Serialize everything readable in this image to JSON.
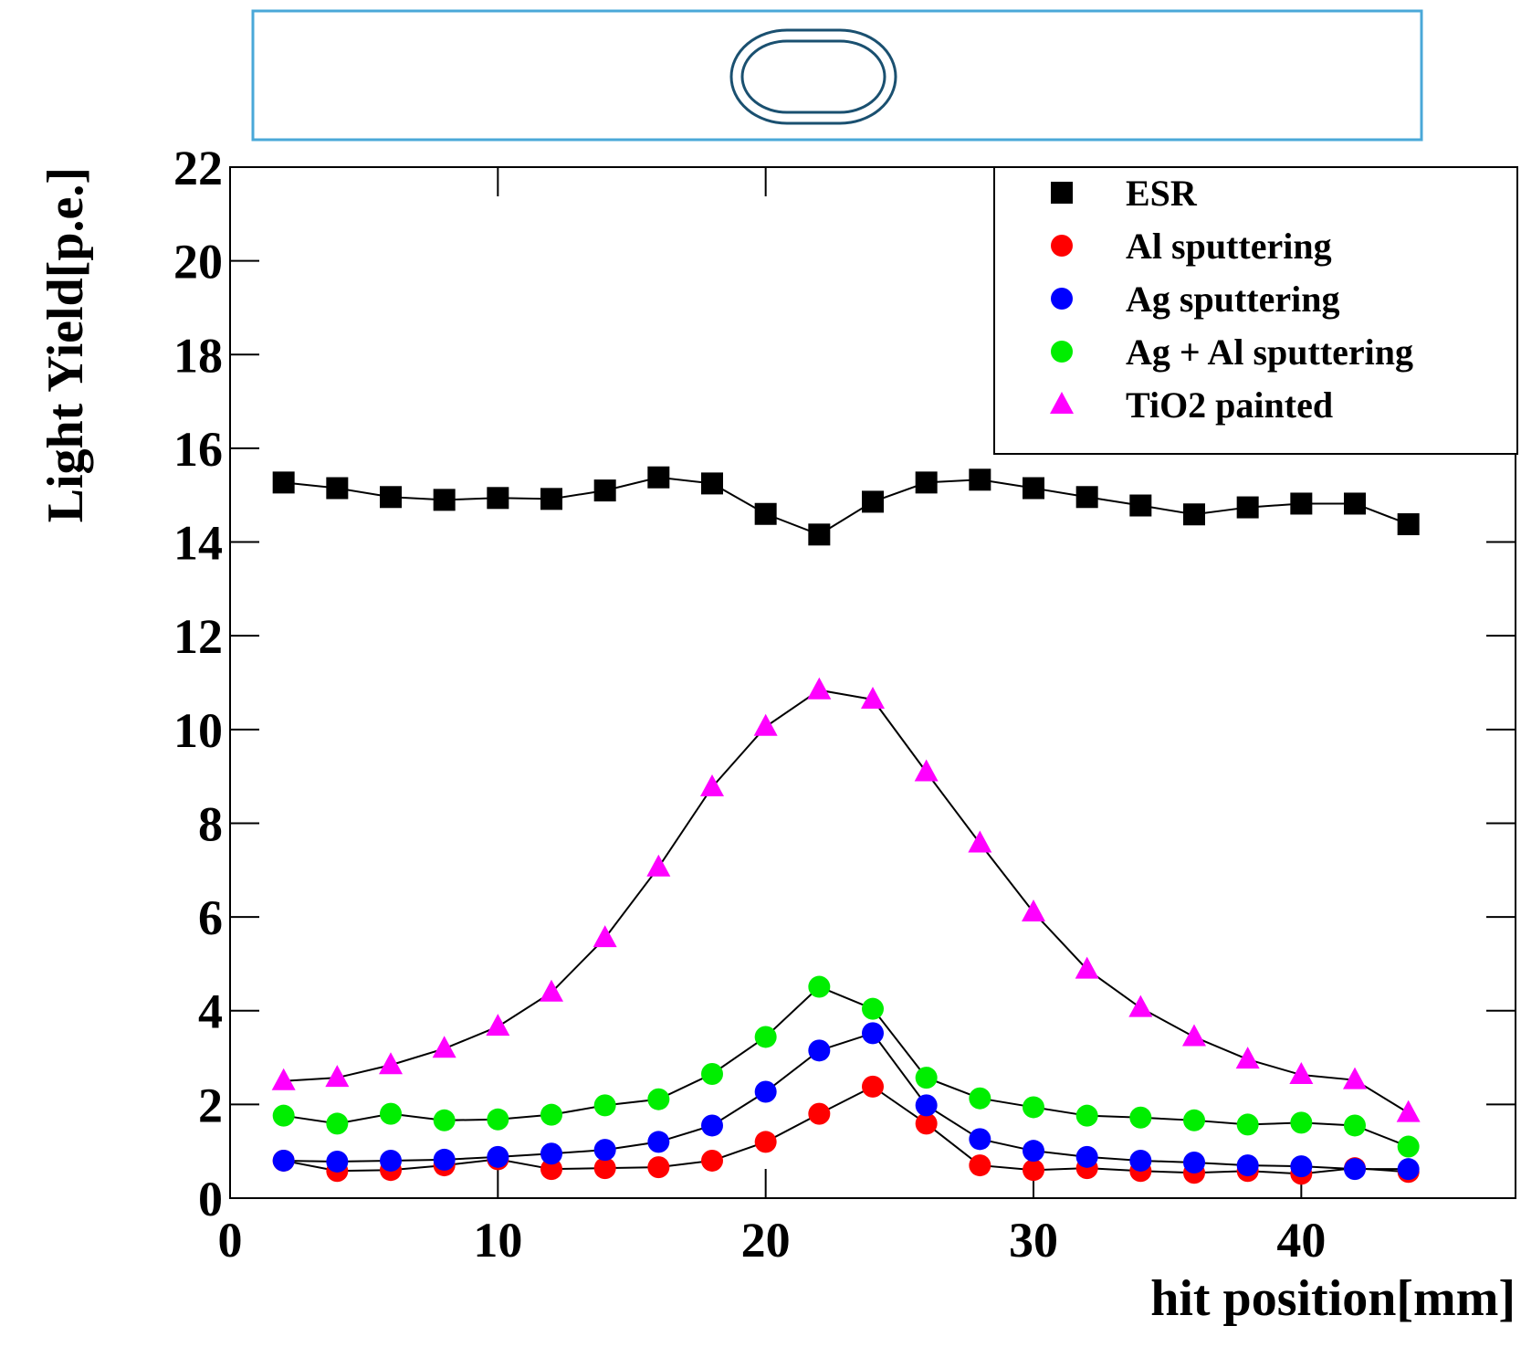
{
  "chart_data": {
    "type": "line",
    "x_label": "hit position[mm]",
    "y_label": "Light Yield[p.e.]",
    "x": [
      2,
      4,
      6,
      8,
      10,
      12,
      14,
      16,
      18,
      20,
      22,
      24,
      26,
      28,
      30,
      32,
      34,
      36,
      38,
      40,
      42,
      44
    ],
    "xlim": [
      0,
      48
    ],
    "xticks": [
      0,
      10,
      20,
      30,
      40
    ],
    "ylim": [
      0,
      22
    ],
    "yticks": [
      0,
      2,
      4,
      6,
      8,
      10,
      12,
      14,
      16,
      18,
      20,
      22
    ],
    "line_color": "#000000",
    "legend": "upper right",
    "series": [
      {
        "name": "ESR",
        "color": "#000000",
        "marker": "square",
        "values": [
          15.27,
          15.15,
          14.96,
          14.9,
          14.94,
          14.92,
          15.1,
          15.38,
          15.25,
          14.6,
          14.16,
          14.86,
          15.27,
          15.33,
          15.15,
          14.96,
          14.78,
          14.59,
          14.74,
          14.82,
          14.82,
          14.38
        ]
      },
      {
        "name": "Al sputtering",
        "color": "#ff0000",
        "marker": "circle",
        "values": [
          0.8,
          0.58,
          0.6,
          0.7,
          0.83,
          0.62,
          0.64,
          0.66,
          0.8,
          1.2,
          1.8,
          2.38,
          1.59,
          0.7,
          0.6,
          0.64,
          0.58,
          0.54,
          0.58,
          0.52,
          0.64,
          0.56
        ]
      },
      {
        "name": "Ag sputtering",
        "color": "#0000ff",
        "marker": "circle",
        "values": [
          0.8,
          0.78,
          0.8,
          0.82,
          0.88,
          0.95,
          1.03,
          1.2,
          1.55,
          2.27,
          3.15,
          3.52,
          1.98,
          1.26,
          1.01,
          0.88,
          0.8,
          0.76,
          0.7,
          0.68,
          0.62,
          0.62
        ]
      },
      {
        "name": "Ag + Al sputtering",
        "color": "#00ee00",
        "marker": "circle",
        "values": [
          1.76,
          1.59,
          1.8,
          1.66,
          1.68,
          1.78,
          1.98,
          2.11,
          2.65,
          3.44,
          4.51,
          4.04,
          2.57,
          2.13,
          1.94,
          1.76,
          1.72,
          1.66,
          1.57,
          1.61,
          1.55,
          1.1
        ]
      },
      {
        "name": "TiO2 painted",
        "color": "#ff00ff",
        "marker": "triangle",
        "values": [
          2.5,
          2.57,
          2.84,
          3.19,
          3.66,
          4.39,
          5.55,
          7.06,
          8.77,
          10.06,
          10.84,
          10.64,
          9.09,
          7.57,
          6.1,
          4.88,
          4.06,
          3.44,
          2.96,
          2.63,
          2.52,
          1.82
        ]
      }
    ]
  }
}
